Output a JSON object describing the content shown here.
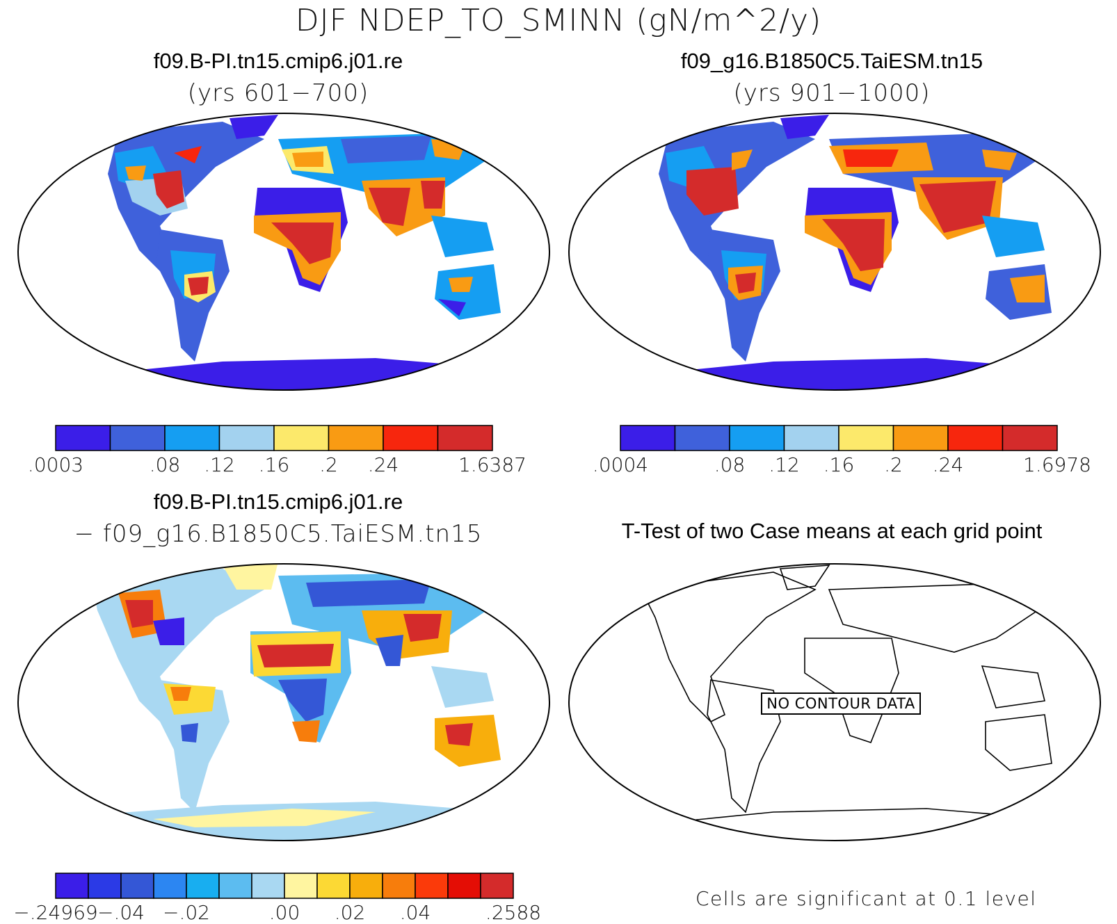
{
  "figure": {
    "title": "DJF NDEP_TO_SMINN (gN/m^2/y)"
  },
  "panels": [
    {
      "id": "case1",
      "title": "f09.B-PI.tn15.cmip6.j01.re",
      "subtitle": "(yrs 601−700)",
      "colorbar": {
        "colors": [
          "#3b1ee8",
          "#3f61db",
          "#159ef2",
          "#a3d2ef",
          "#fce96b",
          "#f99b13",
          "#f7260d",
          "#d42b2b"
        ],
        "labels": [
          ".0003",
          ".08",
          ".12",
          ".16",
          ".2",
          ".24",
          "1.6387"
        ],
        "label_boundaries": [
          0,
          2,
          3,
          4,
          5,
          6,
          8
        ]
      }
    },
    {
      "id": "case2",
      "title": "f09_g16.B1850C5.TaiESM.tn15",
      "subtitle": "(yrs 901−1000)",
      "colorbar": {
        "colors": [
          "#3b1ee8",
          "#3f61db",
          "#159ef2",
          "#a3d2ef",
          "#fce96b",
          "#f99b13",
          "#f7260d",
          "#d42b2b"
        ],
        "labels": [
          ".0004",
          ".08",
          ".12",
          ".16",
          ".2",
          ".24",
          "1.6978"
        ],
        "label_boundaries": [
          0,
          2,
          3,
          4,
          5,
          6,
          8
        ]
      }
    },
    {
      "id": "difference",
      "title": "f09.B-PI.tn15.cmip6.j01.re",
      "subtitle": "− f09_g16.B1850C5.TaiESM.tn15",
      "colorbar": {
        "colors": [
          "#3b1ee8",
          "#2b3ae6",
          "#3457d6",
          "#2c86f2",
          "#18aef0",
          "#5cbcf0",
          "#a9d8f2",
          "#fff5a0",
          "#fcd934",
          "#f8ae0c",
          "#f77d0c",
          "#fb3a0a",
          "#e40d05",
          "#d42b2b"
        ],
        "labels": [
          "−.24969",
          "−.04",
          "−.02",
          ".00",
          ".02",
          ".04",
          ".2588"
        ],
        "label_boundaries": [
          0,
          2,
          4,
          7,
          9,
          11,
          14
        ]
      }
    },
    {
      "id": "ttest",
      "title": "T-Test of two Case means at each grid point",
      "no_data_label": "NO CONTOUR DATA",
      "footnote": "Cells are significant at 0.1 level"
    }
  ]
}
